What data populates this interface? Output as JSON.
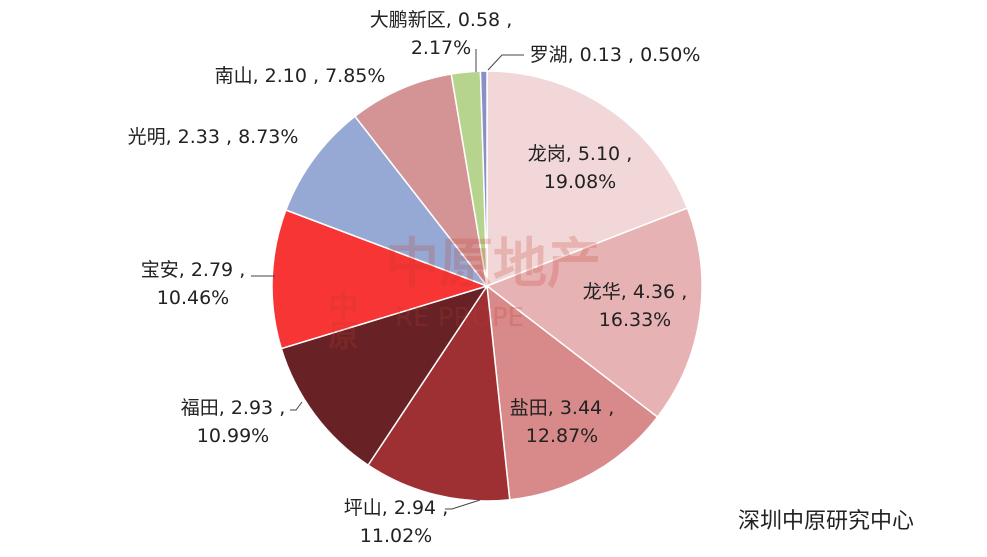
{
  "chart_data": {
    "type": "pie",
    "slices": [
      {
        "label": "龙岗",
        "value": 5.1,
        "percent": "19.08%",
        "color": "#f2d7d8"
      },
      {
        "label": "龙华",
        "value": 4.36,
        "percent": "16.33%",
        "color": "#e7b2b3"
      },
      {
        "label": "盐田",
        "value": 3.44,
        "percent": "12.87%",
        "color": "#d8898a"
      },
      {
        "label": "坪山",
        "value": 2.94,
        "percent": "11.02%",
        "color": "#9e3033"
      },
      {
        "label": "福田",
        "value": 2.93,
        "percent": "10.99%",
        "color": "#682226"
      },
      {
        "label": "宝安",
        "value": 2.79,
        "percent": "10.46%",
        "color": "#f83535"
      },
      {
        "label": "光明",
        "value": 2.33,
        "percent": "8.73%",
        "color": "#96a9d4"
      },
      {
        "label": "南山",
        "value": 2.1,
        "percent": "7.85%",
        "color": "#d49495"
      },
      {
        "label": "大鹏新区",
        "value": 0.58,
        "percent": "2.17%",
        "color": "#b7d48f"
      },
      {
        "label": "罗湖",
        "value": 0.13,
        "percent": "0.50%",
        "color": "#8a8fc7"
      }
    ],
    "labels": [
      [
        "龙岗, 5.10 ,",
        "19.08%"
      ],
      [
        "龙华, 4.36 ,",
        "16.33%"
      ],
      [
        "盐田, 3.44 ,",
        "12.87%"
      ],
      [
        "坪山, 2.94 ,",
        "11.02%"
      ],
      [
        "福田, 2.93 ,",
        "10.99%"
      ],
      [
        "宝安, 2.79 ,",
        "10.46%"
      ],
      [
        "光明, 2.33 , 8.73%"
      ],
      [
        "南山, 2.10 , 7.85%"
      ],
      [
        "大鹏新区, 0.58 ,",
        "2.17%"
      ],
      [
        "罗湖, 0.13 , 0.50%"
      ]
    ]
  },
  "watermark": {
    "main": "中原地产",
    "sub": "RE PROPE",
    "seal": "中原"
  },
  "source": "深圳中原研究中心"
}
